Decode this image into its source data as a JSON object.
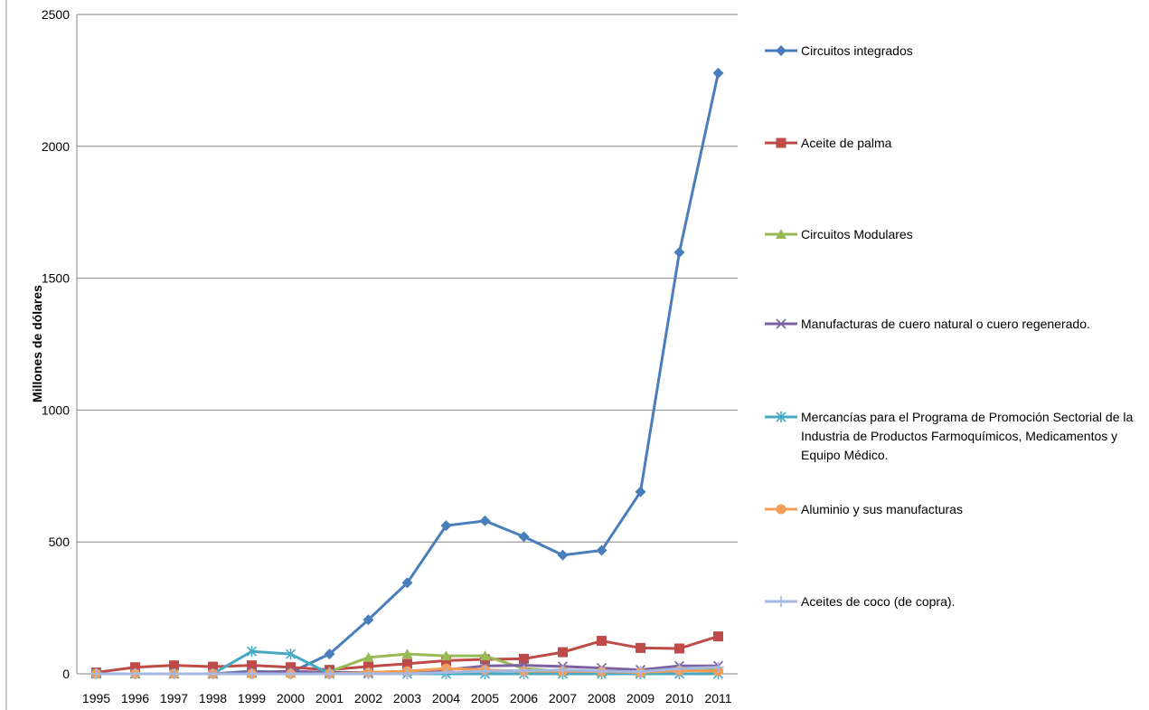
{
  "chart_data": {
    "type": "line",
    "title": "",
    "xlabel": "",
    "ylabel": "Millones de dólares",
    "ylim": [
      0,
      2500
    ],
    "yticks": [
      0,
      500,
      1000,
      1500,
      2000,
      2500
    ],
    "grid": "horizontal",
    "legend": "right",
    "x": [
      "1995",
      "1996",
      "1997",
      "1998",
      "1999",
      "2000",
      "2001",
      "2002",
      "2003",
      "2004",
      "2005",
      "2006",
      "2007",
      "2008",
      "2009",
      "2010",
      "2011"
    ],
    "series": [
      {
        "name": "Circuitos integrados",
        "color": "#4a7ebb",
        "marker": "diamond",
        "values": [
          0,
          0,
          0,
          0,
          10,
          5,
          75,
          205,
          345,
          562,
          580,
          520,
          450,
          468,
          690,
          1598,
          2278
        ]
      },
      {
        "name": "Aceite de palma",
        "color": "#be4b48",
        "marker": "square",
        "values": [
          5,
          25,
          32,
          27,
          32,
          25,
          15,
          28,
          38,
          50,
          55,
          57,
          82,
          125,
          98,
          96,
          142
        ]
      },
      {
        "name": "Circuitos Modulares",
        "color": "#98b954",
        "marker": "triangle",
        "values": [
          0,
          0,
          0,
          0,
          2,
          3,
          8,
          62,
          75,
          68,
          68,
          20,
          10,
          8,
          5,
          15,
          20
        ]
      },
      {
        "name": "Manufacturas de cuero natural o cuero regenerado.",
        "color": "#7d60a0",
        "marker": "x",
        "values": [
          0,
          0,
          0,
          0,
          5,
          10,
          5,
          5,
          10,
          15,
          30,
          32,
          28,
          22,
          15,
          30,
          30
        ]
      },
      {
        "name": "Mercancías para el Programa de Promoción Sectorial de la Industria de Productos Farmoquímicos, Medicamentos y Equipo Médico.",
        "color": "#46aac5",
        "marker": "star",
        "values": [
          0,
          0,
          0,
          0,
          85,
          75,
          0,
          0,
          0,
          0,
          0,
          0,
          0,
          0,
          0,
          0,
          0
        ]
      },
      {
        "name": "Aluminio y sus manufacturas",
        "color": "#f59d56",
        "marker": "circle",
        "values": [
          0,
          0,
          0,
          0,
          0,
          0,
          0,
          5,
          10,
          20,
          15,
          10,
          10,
          8,
          5,
          12,
          10
        ]
      },
      {
        "name": "Aceites de coco (de copra).",
        "color": "#a5b9e0",
        "marker": "plus",
        "values": [
          0,
          0,
          0,
          0,
          0,
          0,
          0,
          0,
          0,
          5,
          10,
          12,
          15,
          10,
          8,
          20,
          25
        ]
      }
    ]
  }
}
